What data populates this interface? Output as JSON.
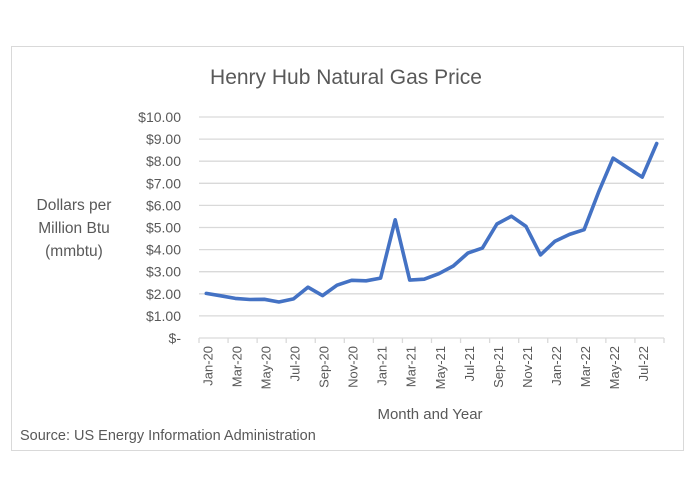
{
  "chart_data": {
    "type": "line",
    "title": "Henry Hub Natural Gas Price",
    "xlabel": "Month and Year",
    "ylabel": "Dollars per Million Btu (mmbtu)",
    "ylabel_lines": [
      "Dollars per",
      "Million Btu",
      "(mmbtu)"
    ],
    "source": "Source: US Energy Information Administration",
    "ylim": [
      0,
      10
    ],
    "y_ticks": [
      "$-",
      "$1.00",
      "$2.00",
      "$3.00",
      "$4.00",
      "$5.00",
      "$6.00",
      "$7.00",
      "$8.00",
      "$9.00",
      "$10.00"
    ],
    "x_tick_labels": [
      "Jan-20",
      "Mar-20",
      "May-20",
      "Jul-20",
      "Sep-20",
      "Nov-20",
      "Jan-21",
      "Mar-21",
      "May-21",
      "Jul-21",
      "Sep-21",
      "Nov-21",
      "Jan-22",
      "Mar-22",
      "May-22",
      "Jul-22"
    ],
    "grid": true,
    "legend": "none",
    "line_color": "#4472C4",
    "categories": [
      "Jan-20",
      "Feb-20",
      "Mar-20",
      "Apr-20",
      "May-20",
      "Jun-20",
      "Jul-20",
      "Aug-20",
      "Sep-20",
      "Oct-20",
      "Nov-20",
      "Dec-20",
      "Jan-21",
      "Feb-21",
      "Mar-21",
      "Apr-21",
      "May-21",
      "Jun-21",
      "Jul-21",
      "Aug-21",
      "Sep-21",
      "Oct-21",
      "Nov-21",
      "Dec-21",
      "Jan-22",
      "Feb-22",
      "Mar-22",
      "Apr-22",
      "May-22",
      "Jun-22",
      "Jul-22",
      "Aug-22"
    ],
    "series": [
      {
        "name": "Henry Hub Natural Gas Price",
        "values": [
          2.02,
          1.91,
          1.79,
          1.74,
          1.75,
          1.63,
          1.77,
          2.3,
          1.92,
          2.39,
          2.61,
          2.59,
          2.71,
          5.35,
          2.62,
          2.66,
          2.91,
          3.26,
          3.84,
          4.07,
          5.16,
          5.51,
          5.05,
          3.76,
          4.38,
          4.69,
          4.9,
          6.6,
          8.14,
          7.7,
          7.28,
          8.8
        ]
      }
    ]
  }
}
